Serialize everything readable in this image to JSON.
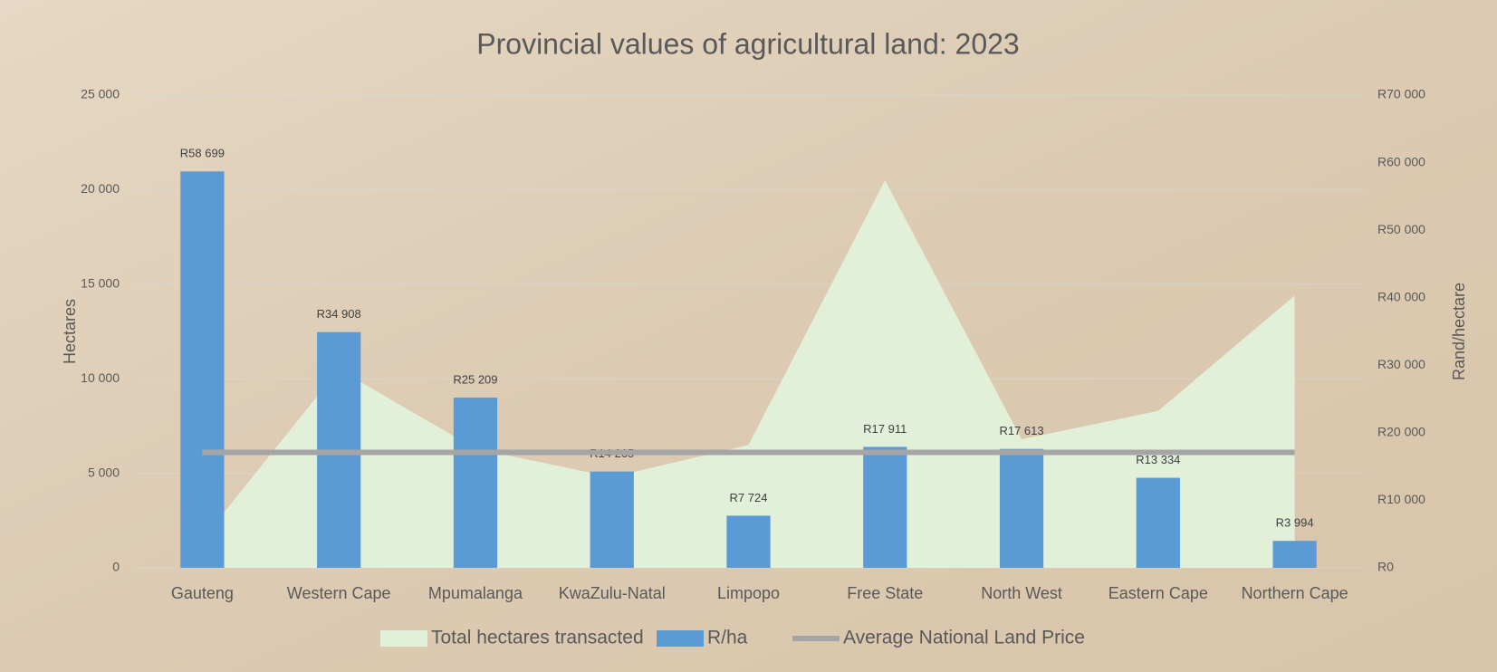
{
  "chart_data": {
    "type": "combo",
    "title": "Provincial values of agricultural land: 2023",
    "y_label": "Hectares",
    "y2_label": "Rand/hectare",
    "categories": [
      "Gauteng",
      "Western Cape",
      "Mpumalanga",
      "KwaZulu-Natal",
      "Limpopo",
      "Free State",
      "North West",
      "Eastern Cape",
      "Northern Cape"
    ],
    "series": [
      {
        "name": "Total hectares transacted",
        "type": "area",
        "color": "#e2efd9",
        "axis": "y",
        "values": [
          1500,
          10500,
          6300,
          4800,
          6500,
          20500,
          6800,
          8300,
          14400
        ]
      },
      {
        "name": "R/ha",
        "type": "bar",
        "color": "#5b9bd5",
        "axis": "y2",
        "values": [
          58699,
          34908,
          25209,
          14265,
          7724,
          17911,
          17613,
          13334,
          3994
        ],
        "value_labels": [
          "R58 699",
          "R34 908",
          "R25 209",
          "R14 265",
          "R7 724",
          "R17 911",
          "R17 613",
          "R13 334",
          "R3 994"
        ]
      },
      {
        "name": "Average National Land Price",
        "type": "line",
        "color": "#a5a5a5",
        "axis": "y2",
        "values": [
          17100,
          17100,
          17100,
          17100,
          17100,
          17100,
          17100,
          17100,
          17100
        ]
      }
    ],
    "ylim": [
      0,
      25000
    ],
    "yticks": [
      0,
      {
        "value": 5000,
        "label": "5 000"
      },
      {
        "value": 10000,
        "label": "10 000"
      },
      {
        "value": 15000,
        "label": "15 000"
      },
      {
        "value": 20000,
        "label": "20 000"
      },
      {
        "value": 25000,
        "label": "25 000"
      }
    ],
    "y2lim": [
      0,
      70000
    ],
    "y2ticks": [
      {
        "value": 0,
        "label": "R0"
      },
      {
        "value": 10000,
        "label": "R10 000"
      },
      {
        "value": 20000,
        "label": "R20 000"
      },
      {
        "value": 30000,
        "label": "R30 000"
      },
      {
        "value": 40000,
        "label": "R40 000"
      },
      {
        "value": 50000,
        "label": "R50 000"
      },
      {
        "value": 60000,
        "label": "R60 000"
      },
      {
        "value": 70000,
        "label": "R70 000"
      }
    ],
    "grid": true,
    "legend": "bottom"
  }
}
